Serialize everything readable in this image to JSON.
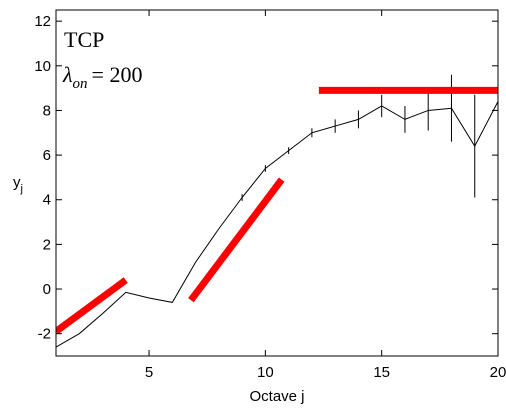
{
  "chart_data": {
    "type": "line",
    "title": "",
    "xlabel": "Octave j",
    "ylabel": "y",
    "ylabel_subscript": "j",
    "xlim": [
      1,
      20
    ],
    "ylim": [
      -3,
      12.5
    ],
    "xticks": [
      5,
      10,
      15,
      20
    ],
    "yticks": [
      -2,
      0,
      2,
      4,
      6,
      8,
      10,
      12
    ],
    "grid": false,
    "series": [
      {
        "x": [
          1,
          2,
          3,
          4,
          5,
          6,
          7,
          8,
          9,
          10,
          11,
          12,
          13,
          14,
          15,
          16,
          17,
          18,
          19,
          20
        ],
        "y": [
          -2.6,
          -2.0,
          -1.1,
          -0.15,
          -0.4,
          -0.6,
          1.2,
          2.7,
          4.1,
          5.4,
          6.2,
          7.0,
          7.3,
          7.6,
          8.2,
          7.6,
          8.0,
          8.1,
          6.4,
          8.4
        ],
        "err": [
          0.05,
          0.05,
          0.05,
          0.05,
          0.05,
          0.05,
          0.1,
          0.1,
          0.15,
          0.15,
          0.15,
          0.2,
          0.3,
          0.4,
          0.5,
          0.6,
          0.9,
          1.5,
          2.3,
          3.6
        ],
        "color": "#000000"
      }
    ],
    "fits": [
      {
        "x": [
          1,
          4
        ],
        "y": [
          -1.9,
          0.4
        ],
        "color": "#ff0000"
      },
      {
        "x": [
          6.8,
          10.7
        ],
        "y": [
          -0.5,
          4.9
        ],
        "color": "#ff0000"
      },
      {
        "x": [
          12.3,
          20
        ],
        "y": [
          8.9,
          8.9
        ],
        "color": "#ff0000"
      }
    ],
    "annotations": {
      "protocol": "TCP",
      "lambda_symbol": "λ",
      "lambda_subscript": "on",
      "lambda_value": "= 200"
    }
  }
}
